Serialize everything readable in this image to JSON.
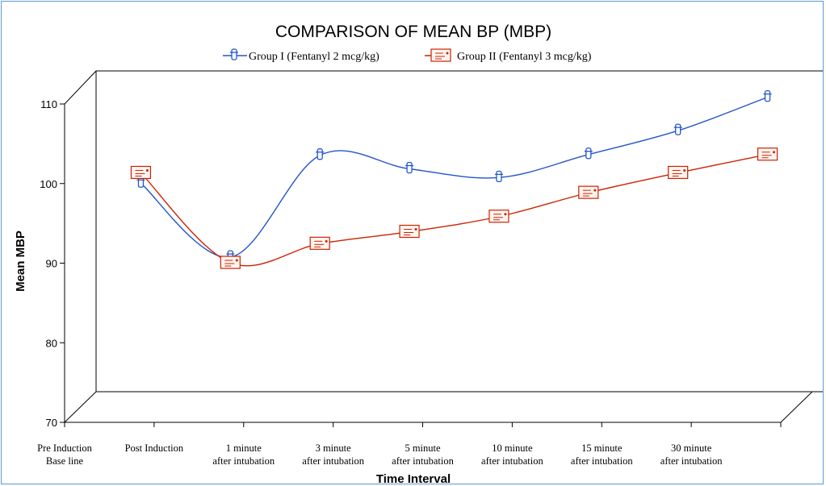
{
  "chart_data": {
    "type": "line",
    "title": "COMPARISON OF MEAN BP (MBP)",
    "ylabel": "Mean MBP",
    "xlabel": "Time Interval",
    "ylim": [
      70,
      110
    ],
    "yticks": [
      70,
      80,
      90,
      100,
      110
    ],
    "categories": [
      [
        "Pre Induction",
        "Base line"
      ],
      [
        "Post Induction"
      ],
      [
        "1 minute",
        "after intubation"
      ],
      [
        "3 minute",
        "after intubation"
      ],
      [
        "5 minute",
        "after intubation"
      ],
      [
        "10 minute",
        "after intubation"
      ],
      [
        "15 minute",
        "after intubation"
      ],
      [
        "30 minute",
        "after intubation"
      ]
    ],
    "series": [
      {
        "name": "Group I (Fentanyl 2 mcg/kg)",
        "color": "#2255cc",
        "marker": "blue-vial-icon",
        "values": [
          96.2,
          86.9,
          99.7,
          98.0,
          96.9,
          99.8,
          102.8,
          107.0
        ]
      },
      {
        "name": "Group II (Fentanyl 3 mcg/kg)",
        "color": "#cc2200",
        "marker": "red-box-icon",
        "values": [
          97.5,
          86.2,
          88.6,
          90.1,
          92.0,
          95.0,
          97.5,
          99.8
        ]
      }
    ],
    "grid": false,
    "legend_position": "top-center"
  }
}
